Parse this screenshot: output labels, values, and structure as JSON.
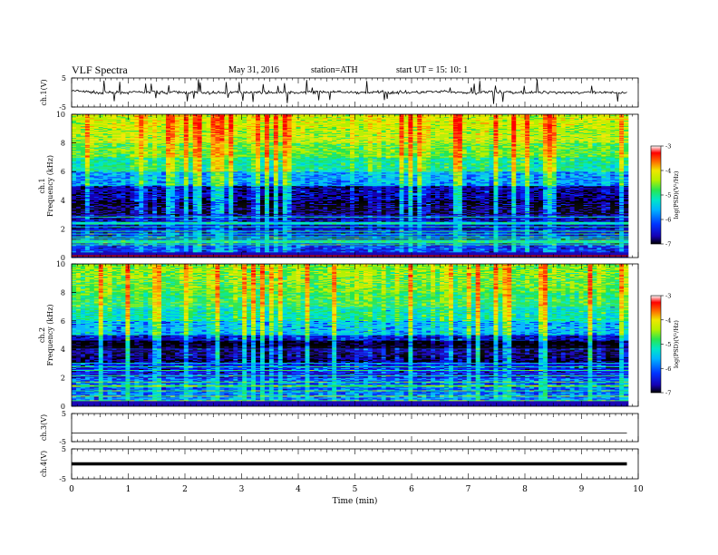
{
  "header": {
    "title": "VLF  Spectra",
    "date": "May 31, 2016",
    "station": "station=ATH",
    "start": "start  UT  =    15: 10: 1"
  },
  "chart_data": [
    {
      "type": "line",
      "panel": "ch1-waveform",
      "ylabel": "ch.1(V)",
      "ylim": [
        -5,
        5
      ],
      "yticks": [
        "5",
        "-5"
      ],
      "x": [
        0,
        0.5,
        1,
        1.5,
        2,
        2.5,
        3,
        3.5,
        4,
        4.5,
        5,
        5.5,
        6,
        6.5,
        7,
        7.5,
        8,
        8.5,
        9,
        9.5,
        9.8
      ],
      "values": [
        0.6,
        -0.1,
        0.0,
        0.1,
        0.0,
        -0.1,
        0.1,
        0.0,
        0.0,
        0.2,
        0.0,
        0.1,
        0.0,
        0.3,
        -0.2,
        0.2,
        0.0,
        0.1,
        0.0,
        -0.1,
        0.0
      ]
    },
    {
      "type": "heatmap",
      "panel": "ch1-spectrogram",
      "ylabel": "Frequency  (kHz)",
      "channel_label": "ch.1",
      "ylim": [
        0,
        10
      ],
      "yticks": [
        "0",
        "2",
        "4",
        "6",
        "8",
        "10"
      ],
      "frequency_kHz": [
        0.5,
        1.5,
        2.5,
        3.5,
        4.5,
        5.5,
        6.5,
        7.5,
        8.5,
        9.5
      ],
      "mean_log_psd": [
        -6.3,
        -6.4,
        -6.6,
        -6.9,
        -6.7,
        -5.9,
        -5.3,
        -4.9,
        -4.6,
        -4.5
      ],
      "colorbar": {
        "label": "log(PSD)(V²/Hz)",
        "range": [
          -7,
          -3
        ],
        "ticks": [
          "-3",
          "-4",
          "-5",
          "-6",
          "-7"
        ]
      }
    },
    {
      "type": "heatmap",
      "panel": "ch2-spectrogram",
      "ylabel": "Frequency  (kHz)",
      "channel_label": "ch.2",
      "ylim": [
        0,
        10
      ],
      "yticks": [
        "0",
        "2",
        "4",
        "6",
        "8",
        "10"
      ],
      "frequency_kHz": [
        0.5,
        1.5,
        2.5,
        3.5,
        4.5,
        5.5,
        6.5,
        7.5,
        8.5,
        9.5
      ],
      "mean_log_psd": [
        -6.0,
        -6.1,
        -6.4,
        -6.8,
        -6.5,
        -5.8,
        -5.4,
        -5.1,
        -4.9,
        -4.8
      ],
      "colorbar": {
        "label": "log(PSD)(V²/Hz)",
        "range": [
          -7,
          -3
        ],
        "ticks": [
          "-3",
          "-4",
          "-5",
          "-6",
          "-7"
        ]
      }
    },
    {
      "type": "line",
      "panel": "ch3-waveform",
      "ylabel": "ch.3(V)",
      "ylim": [
        -5,
        5
      ],
      "yticks": [
        "5",
        "-5"
      ],
      "x": [
        0,
        9.8
      ],
      "values": [
        0,
        0
      ]
    },
    {
      "type": "line",
      "panel": "ch4-waveform",
      "ylabel": "ch.4(V)",
      "ylim": [
        -5,
        5
      ],
      "yticks": [
        "5",
        "-5"
      ],
      "x": [
        0,
        9.8
      ],
      "values": [
        0,
        0
      ]
    }
  ],
  "xaxis": {
    "label": "Time  (min)",
    "range": [
      0,
      10
    ],
    "ticks": [
      "0",
      "1",
      "2",
      "3",
      "4",
      "5",
      "6",
      "7",
      "8",
      "9",
      "10"
    ]
  },
  "colors": {
    "colormap": [
      "#000000",
      "#1500b4",
      "#0033ff",
      "#00b4ff",
      "#00e6c8",
      "#28e650",
      "#b4f000",
      "#f0e600",
      "#ffa000",
      "#ff4000",
      "#ff0000",
      "#ffffff"
    ]
  }
}
